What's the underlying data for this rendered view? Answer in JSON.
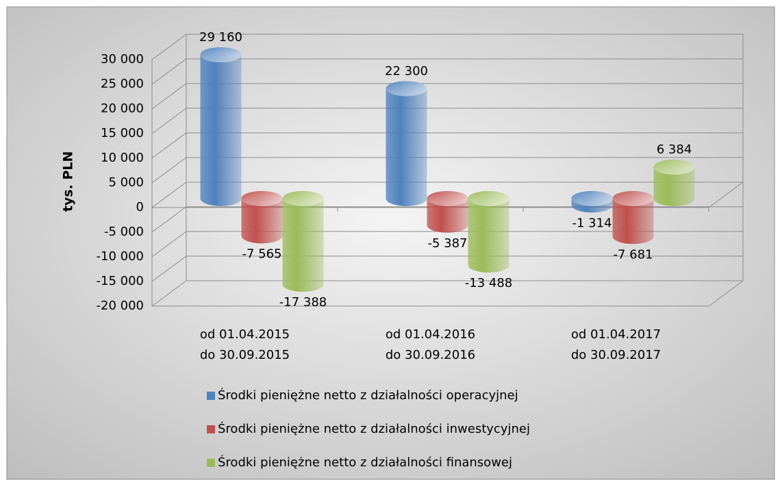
{
  "chart_data": {
    "type": "bar3d",
    "y_label": "tys. PLN",
    "categories": [
      "od 01.04.2015\ndo 30.09.2015",
      "od 01.04.2016\ndo 30.09.2016",
      "od 01.04.2017\ndo 30.09.2017"
    ],
    "series": [
      {
        "name": "Środki pieniężne netto z działalności operacyjnej",
        "color": "#4f81bd",
        "values": [
          29160,
          22300,
          -1314
        ],
        "value_labels": [
          "29 160",
          "22 300",
          "-1 314"
        ]
      },
      {
        "name": "Środki pieniężne netto z działalności inwestycyjnej",
        "color": "#c0504d",
        "values": [
          -7565,
          -5387,
          -7681
        ],
        "value_labels": [
          "-7 565",
          "-5 387",
          "-7 681"
        ]
      },
      {
        "name": "Środki pieniężne netto z działalności finansowej",
        "color": "#9bbb59",
        "values": [
          -17388,
          -13488,
          6384
        ],
        "value_labels": [
          "-17 388",
          "-13 488",
          "6 384"
        ]
      }
    ],
    "ylim": [
      -20000,
      30000
    ],
    "yticks": [
      {
        "value": -20000,
        "label": "-20 000"
      },
      {
        "value": -15000,
        "label": "-15 000"
      },
      {
        "value": -10000,
        "label": "-10 000"
      },
      {
        "value": -5000,
        "label": "-5 000"
      },
      0,
      {
        "value": 5000,
        "label": "5 000"
      },
      {
        "value": 10000,
        "label": "10 000"
      },
      {
        "value": 15000,
        "label": "15 000"
      },
      {
        "value": 20000,
        "label": "20 000"
      },
      {
        "value": 25000,
        "label": "25 000"
      },
      {
        "value": 30000,
        "label": "30 000"
      }
    ],
    "grid": true,
    "legend": "bottom"
  }
}
